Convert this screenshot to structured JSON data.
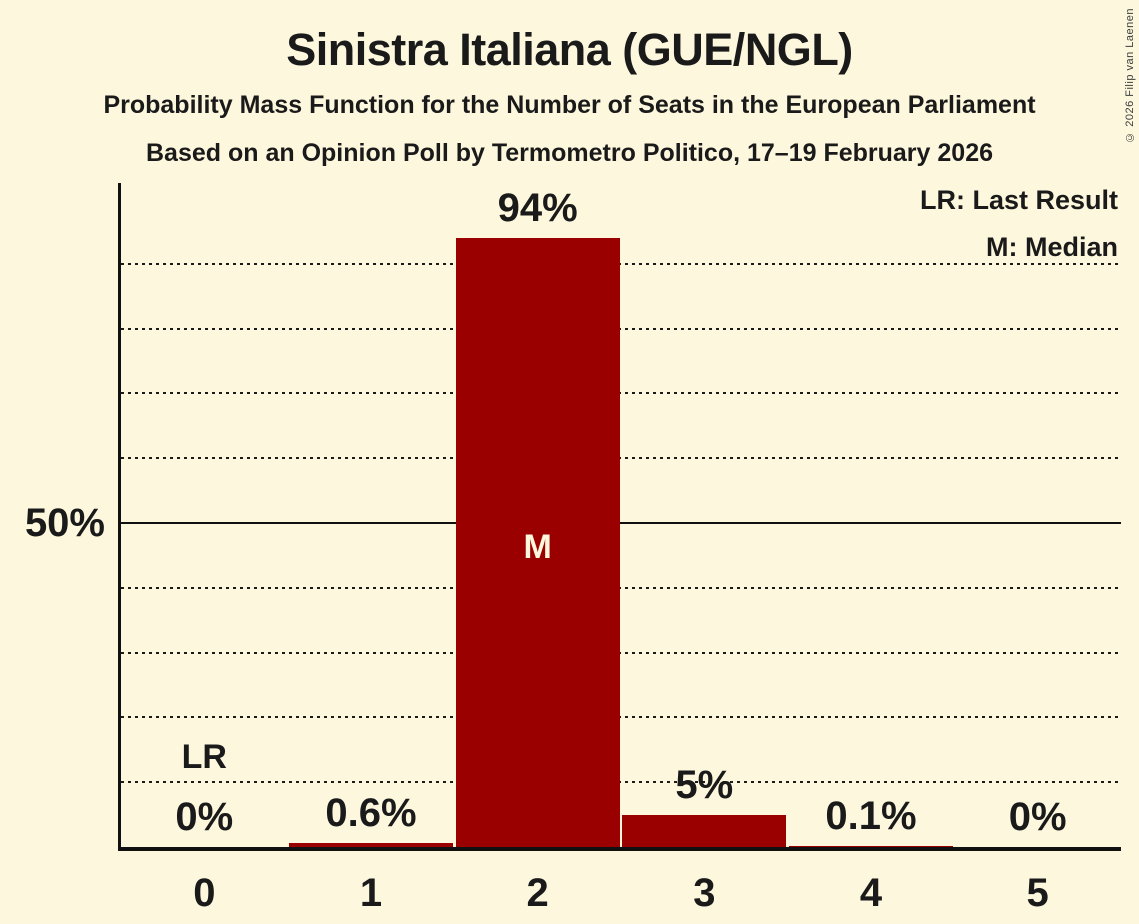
{
  "page": {
    "title": "Sinistra Italiana (GUE/NGL)",
    "subtitle_line1": "Probability Mass Function for the Number of Seats in the European Parliament",
    "subtitle_line2": "Based on an Opinion Poll by Termometro Politico, 17–19 February 2026",
    "copyright": "© 2026 Filip van Laenen"
  },
  "legend": {
    "last_result": "LR: Last Result",
    "median": "M: Median"
  },
  "colors": {
    "background": "#fdf8dd",
    "bar": "#9a0000",
    "text": "#1a1a1a",
    "axis": "#111111",
    "inside_bar_label": "#fdf8dd"
  },
  "chart_data": {
    "type": "bar",
    "categories": [
      "0",
      "1",
      "2",
      "3",
      "4",
      "5"
    ],
    "values": [
      0,
      0.6,
      94,
      5,
      0.1,
      0
    ],
    "value_labels": [
      "0%",
      "0.6%",
      "94%",
      "5%",
      "0.1%",
      "0%"
    ],
    "ylim": [
      0,
      100
    ],
    "ytick": {
      "value": 50,
      "label": "50%"
    },
    "gridlines_dotted": [
      10,
      20,
      30,
      40,
      60,
      70,
      80,
      90
    ],
    "gridlines_solid": [
      50
    ],
    "grid": true,
    "legend_position": "top-right",
    "annotations": [
      {
        "label": "LR",
        "seat_index": 0,
        "placement": "above"
      },
      {
        "label": "M",
        "seat_index": 2,
        "placement": "inside"
      }
    ]
  }
}
